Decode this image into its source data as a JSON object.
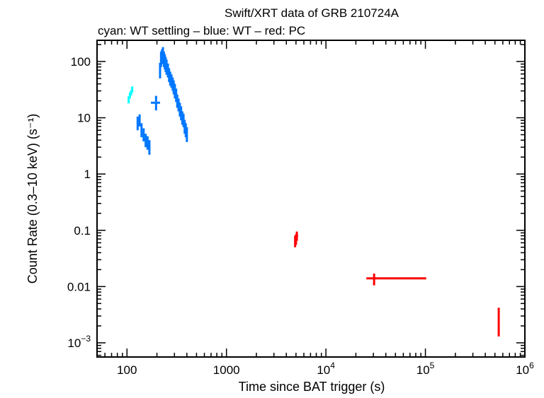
{
  "chart_data": {
    "type": "scatter",
    "title": "Swift/XRT data of GRB 210724A",
    "subtitle": "cyan: WT settling – blue: WT – red: PC",
    "xlabel": "Time since BAT trigger (s)",
    "ylabel": "Count Rate (0.3–10 keV) (s⁻¹)",
    "xscale": "log",
    "yscale": "log",
    "xlim": [
      50,
      1000000
    ],
    "ylim": [
      0.00056,
      238
    ],
    "grid": false,
    "x_ticks": [
      {
        "value": 100,
        "label": "100"
      },
      {
        "value": 1000,
        "label": "1000"
      },
      {
        "value": 10000,
        "label": "10",
        "exp": "4"
      },
      {
        "value": 100000,
        "label": "10",
        "exp": "5"
      },
      {
        "value": 1000000,
        "label": "10",
        "exp": "6"
      }
    ],
    "y_ticks": [
      {
        "value": 100,
        "label": "100"
      },
      {
        "value": 10,
        "label": "10"
      },
      {
        "value": 1,
        "label": "1"
      },
      {
        "value": 0.1,
        "label": "0.1"
      },
      {
        "value": 0.01,
        "label": "0.01"
      },
      {
        "value": 0.001,
        "label": "10",
        "exp": "−3"
      }
    ],
    "series": [
      {
        "key": "wt-settling",
        "color": "#00ffff",
        "points": [
          {
            "t": 104,
            "terr": [
              2,
              2
            ],
            "r": 21,
            "rerr": [
              3,
              3
            ]
          },
          {
            "t": 107,
            "terr": [
              1.5,
              1.5
            ],
            "r": 25,
            "rerr": [
              3,
              3
            ]
          },
          {
            "t": 110,
            "terr": [
              1.5,
              1.5
            ],
            "r": 28,
            "rerr": [
              3,
              3
            ]
          },
          {
            "t": 113,
            "terr": [
              1.5,
              1.5
            ],
            "r": 32,
            "rerr": [
              4,
              4
            ]
          }
        ]
      },
      {
        "key": "wt",
        "color": "#0077ff",
        "points": [
          {
            "t": 128,
            "terr": [
              3,
              3
            ],
            "r": 8,
            "rerr": [
              2,
              2.5
            ]
          },
          {
            "t": 134,
            "terr": [
              3,
              3
            ],
            "r": 9,
            "rerr": [
              2,
              2.5
            ]
          },
          {
            "t": 140,
            "terr": [
              3,
              3
            ],
            "r": 6,
            "rerr": [
              1.5,
              2
            ]
          },
          {
            "t": 147,
            "terr": [
              3,
              3
            ],
            "r": 5,
            "rerr": [
              1.2,
              1.5
            ]
          },
          {
            "t": 154,
            "terr": [
              3,
              3
            ],
            "r": 4,
            "rerr": [
              1,
              1.2
            ]
          },
          {
            "t": 161,
            "terr": [
              3,
              3
            ],
            "r": 3.6,
            "rerr": [
              0.9,
              1.1
            ]
          },
          {
            "t": 168,
            "terr": [
              4,
              4
            ],
            "r": 3.0,
            "rerr": [
              0.8,
              1.0
            ]
          },
          {
            "t": 196,
            "terr": [
              22,
              19
            ],
            "r": 18.5,
            "rerr": [
              5,
              6
            ]
          },
          {
            "t": 215,
            "terr": [
              2,
              2
            ],
            "r": 70,
            "rerr": [
              20,
              25
            ]
          },
          {
            "t": 220,
            "terr": [
              2,
              2
            ],
            "r": 110,
            "rerr": [
              30,
              40
            ]
          },
          {
            "t": 225,
            "terr": [
              2,
              2
            ],
            "r": 120,
            "rerr": [
              30,
              45
            ]
          },
          {
            "t": 230,
            "terr": [
              2,
              2
            ],
            "r": 130,
            "rerr": [
              35,
              50
            ]
          },
          {
            "t": 235,
            "terr": [
              2,
              2
            ],
            "r": 110,
            "rerr": [
              30,
              40
            ]
          },
          {
            "t": 240,
            "terr": [
              2,
              2
            ],
            "r": 100,
            "rerr": [
              28,
              35
            ]
          },
          {
            "t": 245,
            "terr": [
              2,
              2
            ],
            "r": 90,
            "rerr": [
              25,
              30
            ]
          },
          {
            "t": 250,
            "terr": [
              2,
              2
            ],
            "r": 80,
            "rerr": [
              22,
              28
            ]
          },
          {
            "t": 258,
            "terr": [
              3,
              3
            ],
            "r": 70,
            "rerr": [
              18,
              22
            ]
          },
          {
            "t": 265,
            "terr": [
              3,
              3
            ],
            "r": 58,
            "rerr": [
              15,
              18
            ]
          },
          {
            "t": 272,
            "terr": [
              3,
              3
            ],
            "r": 50,
            "rerr": [
              13,
              16
            ]
          },
          {
            "t": 280,
            "terr": [
              3,
              3
            ],
            "r": 45,
            "rerr": [
              11,
              14
            ]
          },
          {
            "t": 288,
            "terr": [
              3,
              3
            ],
            "r": 40,
            "rerr": [
              10,
              12
            ]
          },
          {
            "t": 295,
            "terr": [
              3,
              3
            ],
            "r": 35,
            "rerr": [
              9,
              11
            ]
          },
          {
            "t": 303,
            "terr": [
              3,
              3
            ],
            "r": 30,
            "rerr": [
              8,
              10
            ]
          },
          {
            "t": 312,
            "terr": [
              4,
              4
            ],
            "r": 25,
            "rerr": [
              6,
              8
            ]
          },
          {
            "t": 320,
            "terr": [
              4,
              4
            ],
            "r": 20,
            "rerr": [
              5,
              6
            ]
          },
          {
            "t": 330,
            "terr": [
              4,
              4
            ],
            "r": 17,
            "rerr": [
              4,
              5
            ]
          },
          {
            "t": 340,
            "terr": [
              4,
              4
            ],
            "r": 14,
            "rerr": [
              3.5,
              4.5
            ]
          },
          {
            "t": 350,
            "terr": [
              4,
              4
            ],
            "r": 12,
            "rerr": [
              3,
              4
            ]
          },
          {
            "t": 360,
            "terr": [
              4,
              4
            ],
            "r": 10,
            "rerr": [
              2.5,
              3
            ]
          },
          {
            "t": 370,
            "terr": [
              4,
              4
            ],
            "r": 9,
            "rerr": [
              2.2,
              2.8
            ]
          },
          {
            "t": 380,
            "terr": [
              4,
              4
            ],
            "r": 7,
            "rerr": [
              1.8,
              2.2
            ]
          },
          {
            "t": 390,
            "terr": [
              5,
              5
            ],
            "r": 6,
            "rerr": [
              1.5,
              2
            ]
          },
          {
            "t": 400,
            "terr": [
              5,
              5
            ],
            "r": 5,
            "rerr": [
              1.3,
              1.8
            ]
          }
        ]
      },
      {
        "key": "pc",
        "color": "#ff0000",
        "points": [
          {
            "t": 4900,
            "terr": [
              80,
              80
            ],
            "r": 0.065,
            "rerr": [
              0.015,
              0.015
            ]
          },
          {
            "t": 5000,
            "terr": [
              80,
              80
            ],
            "r": 0.07,
            "rerr": [
              0.015,
              0.015
            ]
          },
          {
            "t": 5100,
            "terr": [
              100,
              150
            ],
            "r": 0.08,
            "rerr": [
              0.015,
              0.015
            ]
          },
          {
            "t": 30500,
            "terr": [
              5000,
              71500
            ],
            "r": 0.014,
            "rerr": [
              0.0035,
              0.003
            ]
          },
          {
            "t": 546000,
            "terr": [
              4000,
              4000
            ],
            "r": 0.0026,
            "rerr": [
              0.0013,
              0.0016
            ]
          }
        ]
      }
    ]
  }
}
